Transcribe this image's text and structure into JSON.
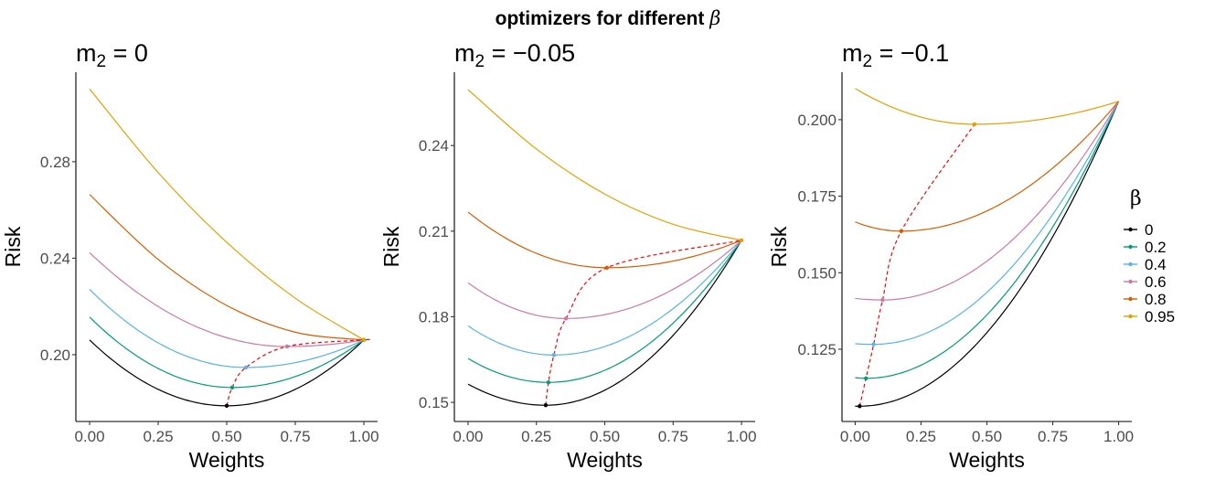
{
  "chart_data": {
    "type": "line",
    "title": "optimizers for different β",
    "title_prefix": "optimizers for different ",
    "title_symbol": "β",
    "legend": {
      "title": "β",
      "placement": "right",
      "entries": [
        "0",
        "0.2",
        "0.4",
        "0.6",
        "0.8",
        "0.95"
      ]
    },
    "series_colors": {
      "0": "#000000",
      "0.2": "#009E73",
      "0.4": "#56B4E9",
      "0.6": "#CC79A7",
      "0.8": "#D55E00",
      "0.95": "#E69F00"
    },
    "optimizer_path_color": "#FF0000",
    "panels": [
      {
        "title_main": "m",
        "title_sub": "2",
        "title_rest": " = 0",
        "xlabel": "Weights",
        "ylabel": "Risk",
        "xlim": [
          -0.05,
          1.05
        ],
        "ylim": [
          0.1723,
          0.3171
        ],
        "xticks": [
          0,
          0.25,
          0.5,
          0.75,
          1
        ],
        "xtick_labels": [
          "0.00",
          "0.25",
          "0.50",
          "0.75",
          "1.00"
        ],
        "yticks": [
          0.2,
          0.24,
          0.28
        ],
        "ytick_labels": [
          "0.20",
          "0.24",
          "0.28"
        ],
        "x": [
          0,
          0.25,
          0.5,
          0.75,
          1
        ],
        "series": [
          {
            "name": "0",
            "values": [
              0.2061,
              0.1856,
              0.1788,
              0.1856,
              0.2061
            ],
            "optimizer": [
              0.5,
              0.1788
            ]
          },
          {
            "name": "0.2",
            "values": [
              0.2156,
              0.1943,
              0.1864,
              0.1909,
              0.2061
            ],
            "optimizer": [
              0.52,
              0.1864
            ]
          },
          {
            "name": "0.4",
            "values": [
              0.2271,
              0.2049,
              0.1952,
              0.1967,
              0.2061
            ],
            "optimizer": [
              0.57,
              0.1947
            ]
          },
          {
            "name": "0.6",
            "values": [
              0.2423,
              0.22,
              0.207,
              0.2034,
              0.2061
            ],
            "optimizer": [
              0.72,
              0.2034
            ]
          },
          {
            "name": "0.8",
            "values": [
              0.2664,
              0.2395,
              0.2204,
              0.2093,
              0.2061
            ],
            "optimizer": [
              1.0,
              0.2061
            ]
          },
          {
            "name": "0.95",
            "values": [
              0.3102,
              0.2755,
              0.2466,
              0.2234,
              0.2061
            ],
            "optimizer": [
              1.0,
              0.2061
            ]
          }
        ]
      },
      {
        "title_main": "m",
        "title_sub": "2",
        "title_rest": " = −0.05",
        "xlabel": "Weights",
        "ylabel": "Risk",
        "xlim": [
          -0.05,
          1.05
        ],
        "ylim": [
          0.1433,
          0.2657
        ],
        "xticks": [
          0,
          0.25,
          0.5,
          0.75,
          1
        ],
        "xtick_labels": [
          "0.00",
          "0.25",
          "0.50",
          "0.75",
          "1.00"
        ],
        "yticks": [
          0.15,
          0.18,
          0.21,
          0.24
        ],
        "ytick_labels": [
          "0.15",
          "0.18",
          "0.21",
          "0.24"
        ],
        "x": [
          0,
          0.25,
          0.5,
          0.75,
          1
        ],
        "series": [
          {
            "name": "0",
            "values": [
              0.1564,
              0.1491,
              0.1543,
              0.1735,
              0.2068
            ],
            "optimizer": [
              0.284,
              0.149
            ]
          },
          {
            "name": "0.2",
            "values": [
              0.1654,
              0.1572,
              0.1612,
              0.1778,
              0.2068
            ],
            "optimizer": [
              0.294,
              0.157
            ]
          },
          {
            "name": "0.4",
            "values": [
              0.1768,
              0.167,
              0.1696,
              0.1828,
              0.2068
            ],
            "optimizer": [
              0.314,
              0.1666
            ]
          },
          {
            "name": "0.6",
            "values": [
              0.1919,
              0.1805,
              0.1807,
              0.1896,
              0.2068
            ],
            "optimizer": [
              0.358,
              0.1794
            ]
          },
          {
            "name": "0.8",
            "values": [
              0.2167,
              0.2022,
              0.1972,
              0.1995,
              0.2068
            ],
            "optimizer": [
              0.508,
              0.1972
            ]
          },
          {
            "name": "0.95",
            "values": [
              0.2596,
              0.2388,
              0.223,
              0.2124,
              0.2068
            ],
            "optimizer": [
              1.0,
              0.2068
            ]
          }
        ]
      },
      {
        "title_main": "m",
        "title_sub": "2",
        "title_rest": " = −0.1",
        "xlabel": "Weights",
        "ylabel": "Risk",
        "xlim": [
          -0.05,
          1.05
        ],
        "ylim": [
          0.1014,
          0.2155
        ],
        "xticks": [
          0,
          0.25,
          0.5,
          0.75,
          1
        ],
        "xtick_labels": [
          "0.00",
          "0.25",
          "0.50",
          "0.75",
          "1.00"
        ],
        "yticks": [
          0.125,
          0.15,
          0.175,
          0.2
        ],
        "ytick_labels": [
          "0.125",
          "0.150",
          "0.175",
          "0.200"
        ],
        "x": [
          0,
          0.25,
          0.5,
          0.75,
          1
        ],
        "series": [
          {
            "name": "0",
            "values": [
              0.1064,
              0.112,
              0.1304,
              0.1617,
              0.206
            ],
            "optimizer": [
              0.017,
              0.1064
            ]
          },
          {
            "name": "0.2",
            "values": [
              0.1157,
              0.1198,
              0.1362,
              0.165,
              0.206
            ],
            "optimizer": [
              0.041,
              0.1155
            ]
          },
          {
            "name": "0.4",
            "values": [
              0.1268,
              0.1296,
              0.1436,
              0.169,
              0.206
            ],
            "optimizer": [
              0.07,
              0.1266
            ]
          },
          {
            "name": "0.6",
            "values": [
              0.1416,
              0.1428,
              0.1538,
              0.1748,
              0.206
            ],
            "optimizer": [
              0.104,
              0.1411
            ]
          },
          {
            "name": "0.8",
            "values": [
              0.1666,
              0.1639,
              0.1702,
              0.1842,
              0.206
            ],
            "optimizer": [
              0.175,
              0.1636
            ]
          },
          {
            "name": "0.95",
            "values": [
              0.2102,
              0.2008,
              0.1986,
              0.2007,
              0.206
            ],
            "optimizer": [
              0.453,
              0.1985
            ]
          }
        ]
      }
    ]
  }
}
